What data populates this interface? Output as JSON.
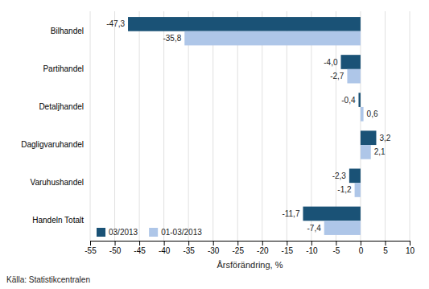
{
  "chart_data": {
    "type": "bar",
    "orientation": "horizontal",
    "categories": [
      "Bilhandel",
      "Partihandel",
      "Detaljhandel",
      "Dagligvaruhandel",
      "Varuhushandel",
      "Handeln Totalt"
    ],
    "series": [
      {
        "name": "03/2013",
        "color": "#1a5276",
        "values": [
          -47.3,
          -4.0,
          -0.4,
          3.2,
          -2.3,
          -11.7
        ],
        "value_labels": [
          "-47,3",
          "-4,0",
          "-0,4",
          "3,2",
          "-2,3",
          "-11,7"
        ]
      },
      {
        "name": "01-03/2013",
        "color": "#aec6e8",
        "values": [
          -35.8,
          -2.7,
          0.6,
          2.1,
          -1.2,
          -7.4
        ],
        "value_labels": [
          "-35,8",
          "-2,7",
          "0,6",
          "2,1",
          "-1,2",
          "-7,4"
        ]
      }
    ],
    "x_label": "Årsförändring, %",
    "annotations": [
      "Källa: Statistikcentralen"
    ],
    "xlim": [
      -55,
      10
    ],
    "xticks": [
      -55,
      -50,
      -45,
      -40,
      -35,
      -30,
      -25,
      -20,
      -15,
      -10,
      -5,
      0,
      5,
      10
    ],
    "grid": true,
    "legend": "lower left",
    "data_labels": true
  }
}
